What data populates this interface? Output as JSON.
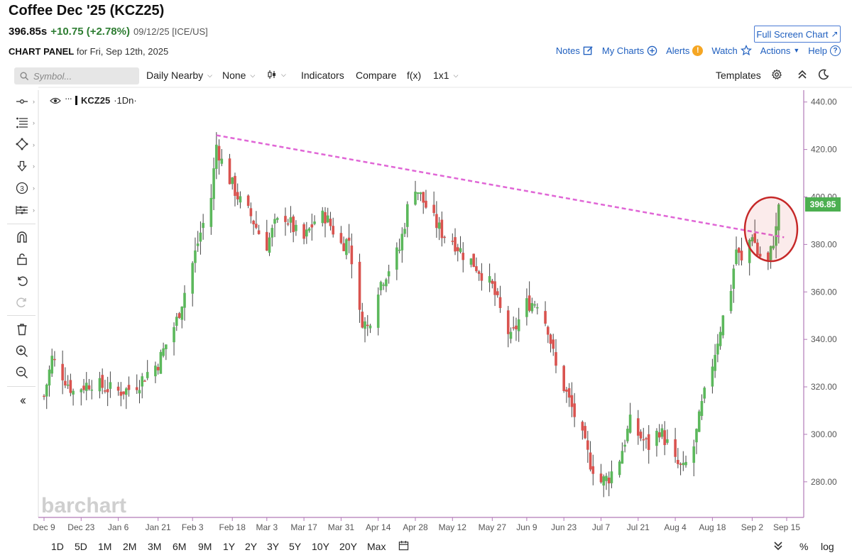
{
  "header": {
    "title": "Coffee Dec '25 (KCZ25)",
    "price": "396.85s",
    "change": "+10.75 (+2.78%)",
    "date_exchange": "09/12/25 [ICE/US]",
    "fullscreen_label": "Full Screen Chart",
    "panel_label": "CHART PANEL",
    "panel_date": "for Fri, Sep 12th, 2025"
  },
  "actions": {
    "notes": "Notes",
    "my_charts": "My Charts",
    "alerts": "Alerts",
    "watch": "Watch",
    "actions": "Actions",
    "help": "Help"
  },
  "toolbar": {
    "search_placeholder": "Symbol...",
    "period": "Daily Nearby",
    "overlay": "None",
    "indicators": "Indicators",
    "compare": "Compare",
    "fx": "f(x)",
    "layout": "1x1",
    "templates": "Templates"
  },
  "legend": {
    "symbol": "KCZ25",
    "interval": "·1Dn·"
  },
  "watermark": "barchart",
  "ranges": [
    "1D",
    "5D",
    "1M",
    "2M",
    "3M",
    "6M",
    "9M",
    "1Y",
    "2Y",
    "3Y",
    "5Y",
    "10Y",
    "20Y",
    "Max"
  ],
  "scale_options": [
    "%",
    "log"
  ],
  "colors": {
    "up": "#5cb85c",
    "down": "#d9534f",
    "trendline": "#e066d6",
    "axis": "#b27ab8",
    "price_tag": "#4caf50",
    "highlight": "#c62828"
  },
  "chart_data": {
    "type": "candlestick",
    "x_ticks": [
      "Dec 9",
      "Dec 23",
      "Jan 6",
      "Jan 21",
      "Feb 3",
      "Feb 18",
      "Mar 3",
      "Mar 17",
      "Mar 31",
      "Apr 14",
      "Apr 28",
      "May 12",
      "May 27",
      "Jun 9",
      "Jun 23",
      "Jul 7",
      "Jul 21",
      "Aug 4",
      "Aug 18",
      "Sep 2",
      "Sep 15"
    ],
    "y_ticks": [
      "280.00",
      "300.00",
      "320.00",
      "340.00",
      "360.00",
      "380.00",
      "400.00",
      "420.00",
      "440.00"
    ],
    "ylim": [
      265,
      445
    ],
    "last_price_label": "396.85",
    "last_price": 396.85,
    "close_path": [
      [
        "Dec 9",
        316
      ],
      [
        "Dec 12",
        332
      ],
      [
        "Dec 16",
        325
      ],
      [
        "Dec 20",
        318
      ],
      [
        "Dec 23",
        320
      ],
      [
        "Dec 27",
        322
      ],
      [
        "Dec 31",
        320
      ],
      [
        "Jan 6",
        318
      ],
      [
        "Jan 10",
        319
      ],
      [
        "Jan 14",
        322
      ],
      [
        "Jan 17",
        326
      ],
      [
        "Jan 21",
        330
      ],
      [
        "Jan 24",
        338
      ],
      [
        "Jan 28",
        348
      ],
      [
        "Jan 31",
        360
      ],
      [
        "Feb 3",
        372
      ],
      [
        "Feb 6",
        385
      ],
      [
        "Feb 10",
        400
      ],
      [
        "Feb 12",
        422
      ],
      [
        "Feb 14",
        415
      ],
      [
        "Feb 18",
        405
      ],
      [
        "Feb 21",
        398
      ],
      [
        "Feb 25",
        392
      ],
      [
        "Feb 28",
        385
      ],
      [
        "Mar 3",
        380
      ],
      [
        "Mar 6",
        388
      ],
      [
        "Mar 10",
        392
      ],
      [
        "Mar 14",
        385
      ],
      [
        "Mar 17",
        382
      ],
      [
        "Mar 21",
        390
      ],
      [
        "Mar 25",
        392
      ],
      [
        "Mar 28",
        386
      ],
      [
        "Mar 31",
        380
      ],
      [
        "Apr 3",
        382
      ],
      [
        "Apr 7",
        350
      ],
      [
        "Apr 10",
        345
      ],
      [
        "Apr 14",
        362
      ],
      [
        "Apr 18",
        370
      ],
      [
        "Apr 22",
        378
      ],
      [
        "Apr 25",
        395
      ],
      [
        "Apr 28",
        405
      ],
      [
        "May 1",
        398
      ],
      [
        "May 5",
        390
      ],
      [
        "May 8",
        385
      ],
      [
        "May 12",
        382
      ],
      [
        "May 16",
        376
      ],
      [
        "May 20",
        372
      ],
      [
        "May 23",
        368
      ],
      [
        "May 27",
        362
      ],
      [
        "May 30",
        352
      ],
      [
        "Jun 3",
        340
      ],
      [
        "Jun 6",
        348
      ],
      [
        "Jun 9",
        355
      ],
      [
        "Jun 13",
        356
      ],
      [
        "Jun 17",
        345
      ],
      [
        "Jun 20",
        328
      ],
      [
        "Jun 23",
        320
      ],
      [
        "Jun 27",
        308
      ],
      [
        "Jul 1",
        295
      ],
      [
        "Jul 3",
        288
      ],
      [
        "Jul 7",
        280
      ],
      [
        "Jul 10",
        282
      ],
      [
        "Jul 14",
        290
      ],
      [
        "Jul 18",
        305
      ],
      [
        "Jul 21",
        300
      ],
      [
        "Jul 25",
        295
      ],
      [
        "Jul 29",
        302
      ],
      [
        "Aug 1",
        296
      ],
      [
        "Aug 4",
        288
      ],
      [
        "Aug 7",
        285
      ],
      [
        "Aug 11",
        295
      ],
      [
        "Aug 14",
        312
      ],
      [
        "Aug 18",
        330
      ],
      [
        "Aug 21",
        345
      ],
      [
        "Aug 25",
        362
      ],
      [
        "Aug 27",
        378
      ],
      [
        "Aug 29",
        372
      ],
      [
        "Sep 2",
        385
      ],
      [
        "Sep 4",
        376
      ],
      [
        "Sep 8",
        372
      ],
      [
        "Sep 10",
        382
      ],
      [
        "Sep 11",
        386
      ],
      [
        "Sep 12",
        396.85
      ]
    ]
  }
}
